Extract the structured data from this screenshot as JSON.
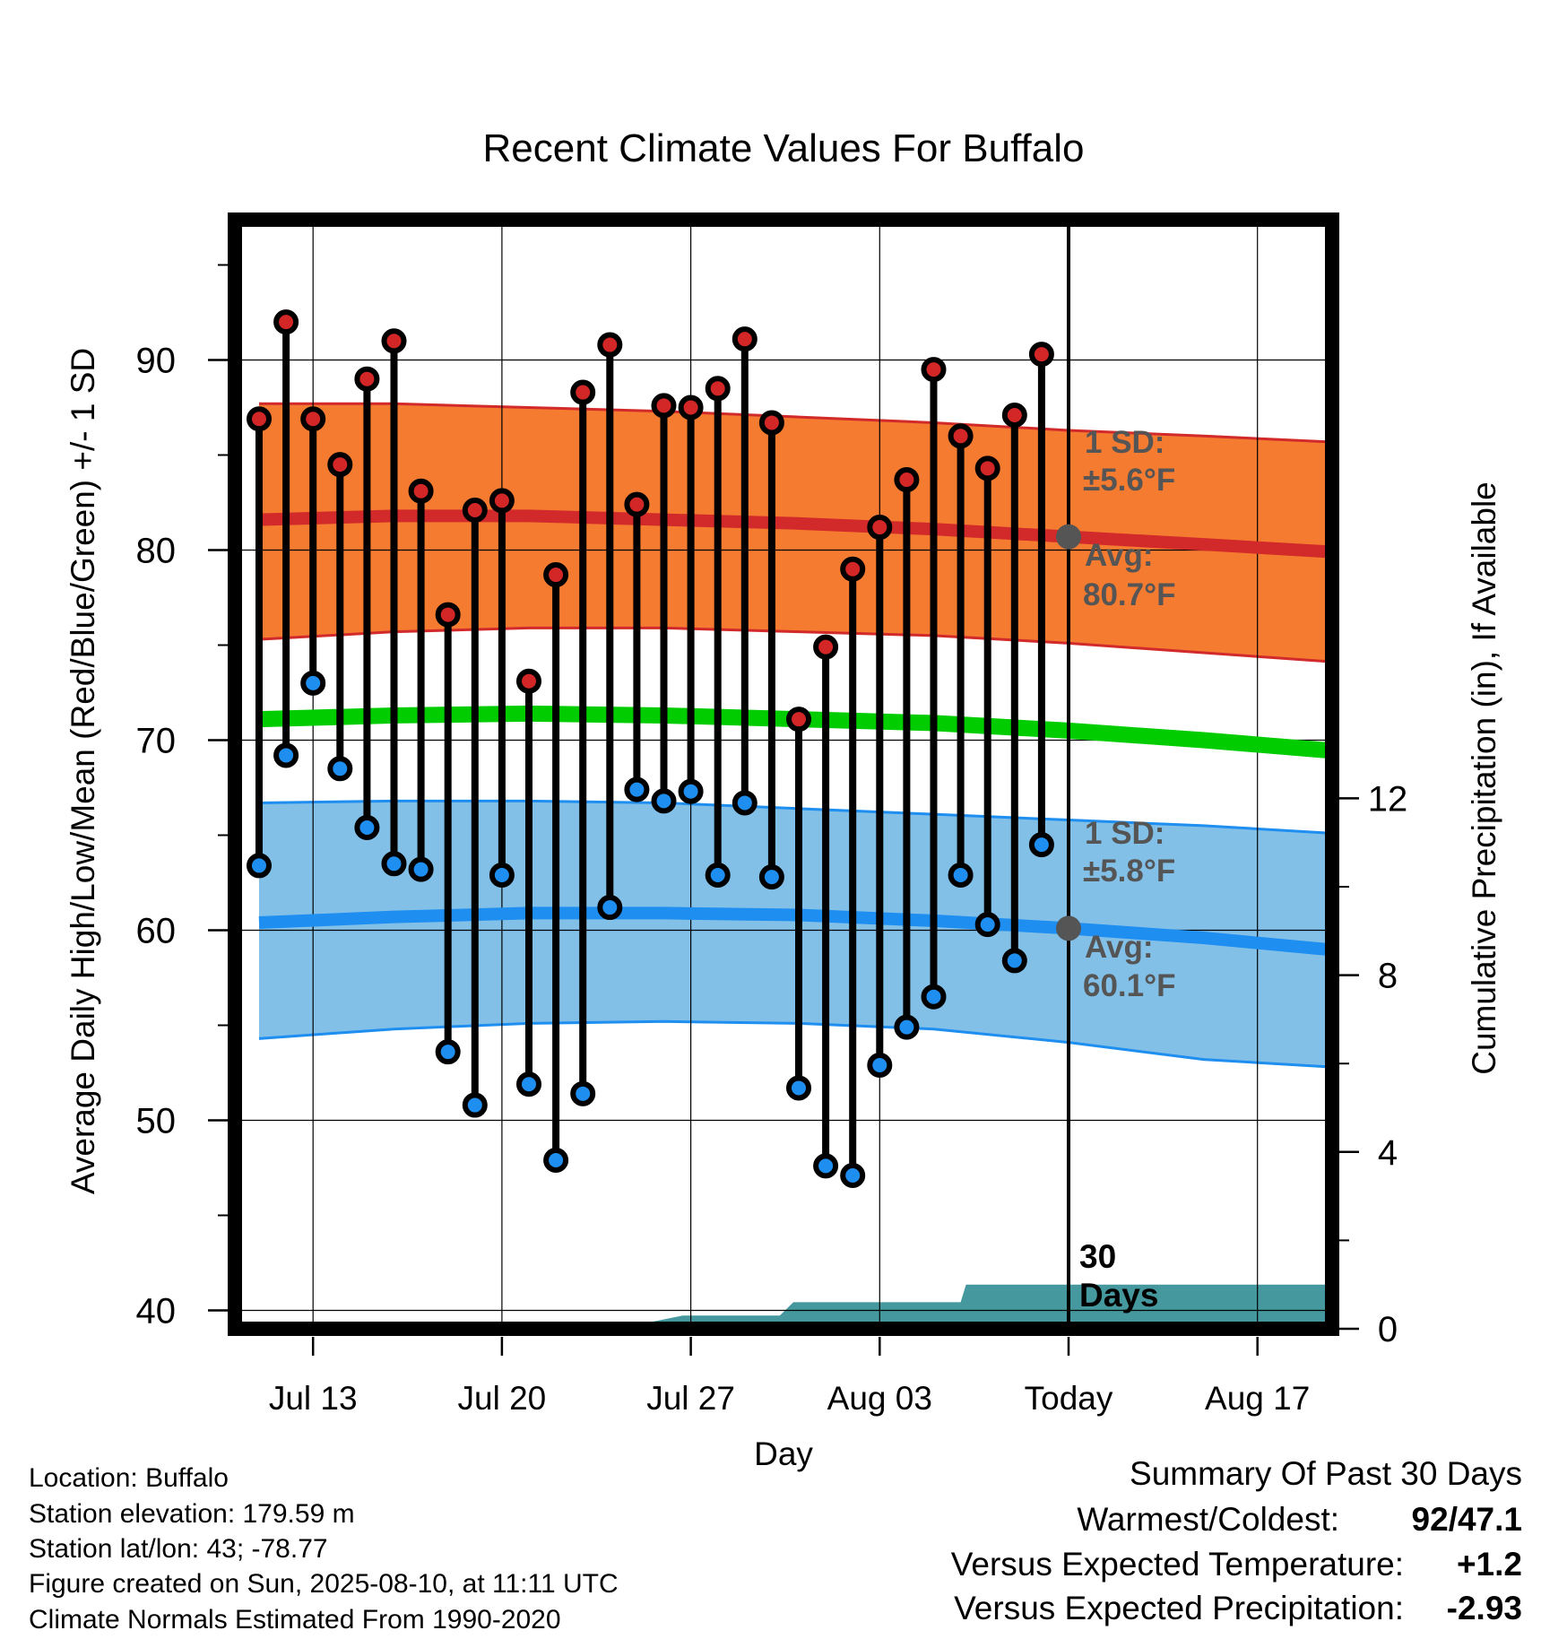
{
  "chart_data": {
    "type": "line",
    "title": "Recent Climate Values For Buffalo",
    "xlabel": "Day",
    "ylabel": "Average Daily High/Low/Mean (Red/Blue/Green) +/- 1 SD",
    "y2label": "Cumulative Precipitation (in), If Available",
    "ylim": [
      39.2,
      97
    ],
    "y2lim": [
      0,
      24
    ],
    "yticks": [
      40,
      50,
      60,
      70,
      80,
      90
    ],
    "y2ticks": [
      0,
      4,
      8,
      12
    ],
    "x_domain_days": [
      -29.7,
      11
    ],
    "x_ticks": [
      {
        "day": -28,
        "label": "Jul 13"
      },
      {
        "day": -21,
        "label": "Jul 20"
      },
      {
        "day": -14,
        "label": "Jul 27"
      },
      {
        "day": -7,
        "label": "Aug 03"
      },
      {
        "day": 0,
        "label": "Today"
      },
      {
        "day": 7,
        "label": "Aug 17"
      }
    ],
    "daily_high": [
      86.9,
      92.0,
      86.9,
      84.5,
      89.0,
      91.0,
      83.1,
      76.6,
      82.1,
      82.6,
      73.1,
      78.7,
      88.3,
      90.8,
      82.4,
      87.6,
      87.5,
      88.5,
      91.1,
      86.7,
      71.1,
      74.9,
      79.0,
      81.2,
      83.7,
      89.5,
      86.0,
      84.3,
      87.1,
      90.3
    ],
    "daily_low": [
      63.4,
      69.2,
      73.0,
      68.5,
      65.4,
      63.5,
      63.2,
      53.6,
      50.8,
      62.9,
      51.9,
      47.9,
      51.4,
      61.2,
      67.4,
      66.8,
      67.3,
      62.9,
      66.7,
      62.8,
      51.7,
      47.6,
      47.1,
      52.9,
      54.9,
      56.5,
      62.9,
      60.3,
      58.4,
      64.5
    ],
    "low_marker_highlight_index": 2,
    "normal_high": {
      "days": [
        -30,
        -25,
        -20,
        -15,
        -10,
        -5,
        0,
        5,
        11
      ],
      "mean": [
        81.6,
        81.8,
        81.8,
        81.6,
        81.4,
        81.1,
        80.7,
        80.3,
        79.8
      ],
      "upper": [
        87.7,
        87.7,
        87.5,
        87.3,
        87.0,
        86.7,
        86.3,
        86.0,
        85.6
      ],
      "lower": [
        75.3,
        75.7,
        75.9,
        75.9,
        75.7,
        75.5,
        75.1,
        74.6,
        74.0
      ]
    },
    "normal_mean": {
      "days": [
        -30,
        -25,
        -20,
        -15,
        -10,
        -5,
        0,
        5,
        11
      ],
      "values": [
        71.1,
        71.3,
        71.4,
        71.3,
        71.1,
        70.9,
        70.5,
        70.0,
        69.3
      ]
    },
    "normal_low": {
      "days": [
        -30,
        -25,
        -20,
        -15,
        -10,
        -5,
        0,
        5,
        11
      ],
      "mean": [
        60.4,
        60.7,
        60.9,
        60.9,
        60.8,
        60.5,
        60.1,
        59.6,
        58.8
      ],
      "upper": [
        66.7,
        66.8,
        66.8,
        66.7,
        66.4,
        66.1,
        65.8,
        65.5,
        65.0
      ],
      "lower": [
        54.3,
        54.8,
        55.1,
        55.2,
        55.1,
        54.8,
        54.1,
        53.2,
        52.7
      ]
    },
    "precip_cumulative": {
      "days": [
        -29.7,
        -16.7,
        -14.3,
        -14.3,
        -10.7,
        -10.2,
        -5.2,
        -4.0,
        -3.8,
        11
      ],
      "values": [
        0,
        0,
        0.3,
        0.3,
        0.3,
        0.6,
        0.6,
        0.6,
        1.0,
        1.0
      ]
    },
    "annotations": {
      "high_sd": "1 SD:",
      "high_sd_val": "±5.6°F",
      "high_avg": "Avg:",
      "high_avg_val": "80.7°F",
      "low_sd": "1 SD:",
      "low_sd_val": "±5.8°F",
      "low_avg": "Avg:",
      "low_avg_val": "60.1°F",
      "days_30": "30",
      "days_label": "Days"
    },
    "colors": {
      "high_band": "#f47b30",
      "high_line": "#d22a2a",
      "low_band": "#82c0e8",
      "low_line": "#1e8ef0",
      "mean_line": "#00cc00",
      "precip": "#45999e",
      "high_dot": "#d32626",
      "low_dot": "#1e8ef0",
      "avg_dot": "#555555"
    },
    "grid": true
  },
  "footer": {
    "location": "Location: Buffalo",
    "elevation": "Station elevation: 179.59 m",
    "latlon": "Station lat/lon: 43; -78.77",
    "created": "Figure created on Sun, 2025-08-10, at 11:11 UTC",
    "normals": "Climate Normals Estimated From 1990-2020"
  },
  "summary": {
    "title": "Summary Of Past 30 Days",
    "warm_cold_label": "Warmest/Coldest:",
    "warm_cold_value": "92/47.1",
    "temp_label": "Versus Expected Temperature:",
    "temp_value": "+1.2",
    "temp_color": "#d32626",
    "precip_label": "Versus Expected Precipitation:",
    "precip_value": "-2.93",
    "precip_color": "#a0522d"
  }
}
